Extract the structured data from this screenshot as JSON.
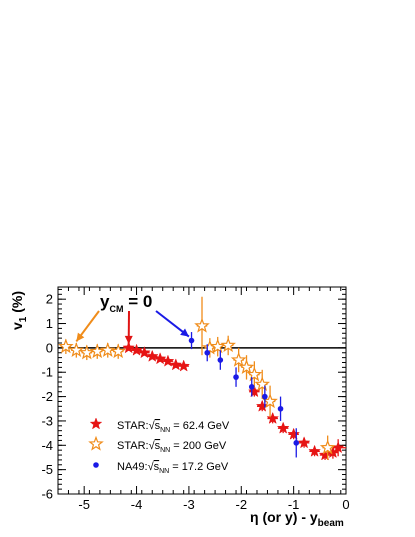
{
  "chart_data": {
    "type": "scatter",
    "xlabel": "η (or y) - y",
    "xlabel_sub": "beam",
    "ylabel": "v",
    "ylabel_sub": "1",
    "ylabel_unit": " (%)",
    "xlim": [
      -5.5,
      0.0
    ],
    "ylim": [
      -6,
      2.5
    ],
    "x_ticks": [
      -5,
      -4,
      -3,
      -2,
      -1,
      0
    ],
    "y_ticks": [
      -6,
      -5,
      -4,
      -3,
      -2,
      -1,
      0,
      1,
      2
    ],
    "x_tick_labels": [
      "-5",
      "-4",
      "-3",
      "-2",
      "-1",
      "0"
    ],
    "y_tick_labels": [
      "-6",
      "-5",
      "-4",
      "-3",
      "-2",
      "-1",
      "0",
      "1",
      "2"
    ],
    "grid": false,
    "zero_line": true,
    "legend_position": "bottom-left",
    "annotation": {
      "text_main": "y",
      "text_sub": "CM",
      "text_tail": " = 0",
      "arrow_targets": [
        {
          "x": -5.15,
          "y": 0.1,
          "color": "#f08c1a"
        },
        {
          "x": -4.15,
          "y": 0.0,
          "color": "#e01414"
        },
        {
          "x": -3.0,
          "y": 0.3,
          "color": "#1a1ae6"
        }
      ]
    },
    "series": [
      {
        "name": "STAR:",
        "name_tail": " = 62.4 GeV",
        "marker": "filled-star",
        "color": "#e61414",
        "points": [
          [
            -4.15,
            0.0,
            0.1,
            0.12
          ],
          [
            -4.0,
            -0.1,
            0.1,
            0.12
          ],
          [
            -3.85,
            -0.2,
            0.1,
            0.12
          ],
          [
            -3.7,
            -0.35,
            0.1,
            0.12
          ],
          [
            -3.55,
            -0.45,
            0.1,
            0.12
          ],
          [
            -3.4,
            -0.55,
            0.1,
            0.12
          ],
          [
            -3.25,
            -0.7,
            0.1,
            0.12
          ],
          [
            -3.1,
            -0.75,
            0.1,
            0.12
          ],
          [
            -1.75,
            -1.8,
            0.1,
            0.2
          ],
          [
            -1.6,
            -2.4,
            0.1,
            0.2
          ],
          [
            -1.4,
            -2.9,
            0.1,
            0.2
          ],
          [
            -1.2,
            -3.3,
            0.1,
            0.2
          ],
          [
            -1.0,
            -3.55,
            0.1,
            0.2
          ],
          [
            -0.8,
            -3.9,
            0.1,
            0.2
          ],
          [
            -0.6,
            -4.25,
            0.1,
            0.2
          ],
          [
            -0.4,
            -4.4,
            0.1,
            0.2
          ],
          [
            -0.25,
            -4.3,
            0.1,
            0.25
          ],
          [
            -0.15,
            -4.1,
            0.15,
            0.35
          ]
        ]
      },
      {
        "name": "STAR:",
        "name_tail": " = 200 GeV",
        "marker": "open-star",
        "color": "#f08c1a",
        "points": [
          [
            -5.35,
            0.05,
            0.1,
            0.3
          ],
          [
            -5.15,
            -0.1,
            0.1,
            0.3
          ],
          [
            -4.95,
            -0.2,
            0.1,
            0.3
          ],
          [
            -4.75,
            -0.15,
            0.1,
            0.3
          ],
          [
            -4.55,
            -0.1,
            0.1,
            0.3
          ],
          [
            -4.35,
            -0.15,
            0.1,
            0.3
          ],
          [
            -2.75,
            0.9,
            0.1,
            1.2
          ],
          [
            -2.6,
            0.0,
            0.1,
            0.4
          ],
          [
            -2.45,
            0.05,
            0.1,
            0.4
          ],
          [
            -2.25,
            0.1,
            0.1,
            0.4
          ],
          [
            -2.05,
            -0.5,
            0.1,
            0.5
          ],
          [
            -1.9,
            -0.8,
            0.1,
            0.5
          ],
          [
            -1.75,
            -1.1,
            0.1,
            0.55
          ],
          [
            -1.6,
            -1.5,
            0.1,
            0.6
          ],
          [
            -1.45,
            -2.2,
            0.1,
            0.65
          ],
          [
            -0.35,
            -4.1,
            0.1,
            0.5
          ]
        ]
      },
      {
        "name": "NA49:",
        "name_tail": " = 17.2 GeV",
        "marker": "circle",
        "color": "#1a1ae6",
        "points": [
          [
            -2.95,
            0.3,
            0,
            0.35
          ],
          [
            -2.65,
            -0.2,
            0,
            0.35
          ],
          [
            -2.4,
            -0.5,
            0,
            0.4
          ],
          [
            -2.1,
            -1.2,
            0,
            0.4
          ],
          [
            -1.8,
            -1.6,
            0,
            0.4
          ],
          [
            -1.55,
            -2.0,
            0,
            0.45
          ],
          [
            -1.25,
            -2.5,
            0,
            0.5
          ],
          [
            -0.95,
            -3.9,
            0,
            0.6
          ]
        ]
      }
    ],
    "sqrt_label": "s",
    "sqrt_sub": "NN"
  }
}
